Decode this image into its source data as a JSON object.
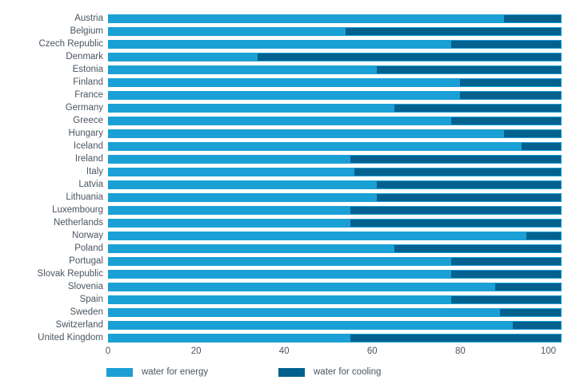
{
  "chart_data": {
    "type": "bar",
    "stacked": true,
    "orientation": "horizontal",
    "title": "",
    "xlabel": "",
    "ylabel": "",
    "grid": false,
    "legend_position": "bottom",
    "bar_total": 103,
    "xlim": [
      0,
      103
    ],
    "x_ticks": [
      0,
      20,
      40,
      60,
      80,
      100
    ],
    "categories": [
      "Austria",
      "Belgium",
      "Czech Republic",
      "Denmark",
      "Estonia",
      "Finland",
      "France",
      "Germany",
      "Greece",
      "Hungary",
      "Iceland",
      "Ireland",
      "Italy",
      "Latvia",
      "Lithuania",
      "Luxembourg",
      "Netherlands",
      "Norway",
      "Poland",
      "Portugal",
      "Slovak Republic",
      "Slovenia",
      "Spain",
      "Sweden",
      "Switzerland",
      "United Kingdom"
    ],
    "series": [
      {
        "name": "water for energy",
        "color": "#1BA0D6",
        "values": [
          90,
          54,
          78,
          34,
          61,
          80,
          80,
          65,
          78,
          90,
          94,
          55,
          56,
          61,
          61,
          55,
          55,
          95,
          65,
          78,
          78,
          88,
          78,
          89,
          92,
          55
        ]
      },
      {
        "name": "water for cooling",
        "color": "#03618F",
        "values": [
          13,
          49,
          25,
          69,
          42,
          23,
          23,
          38,
          25,
          13,
          9,
          48,
          47,
          42,
          42,
          48,
          48,
          8,
          38,
          25,
          25,
          15,
          25,
          14,
          11,
          48
        ]
      }
    ]
  },
  "colors": {
    "label_text": "#4A5560",
    "background": "#FFFFFF"
  }
}
